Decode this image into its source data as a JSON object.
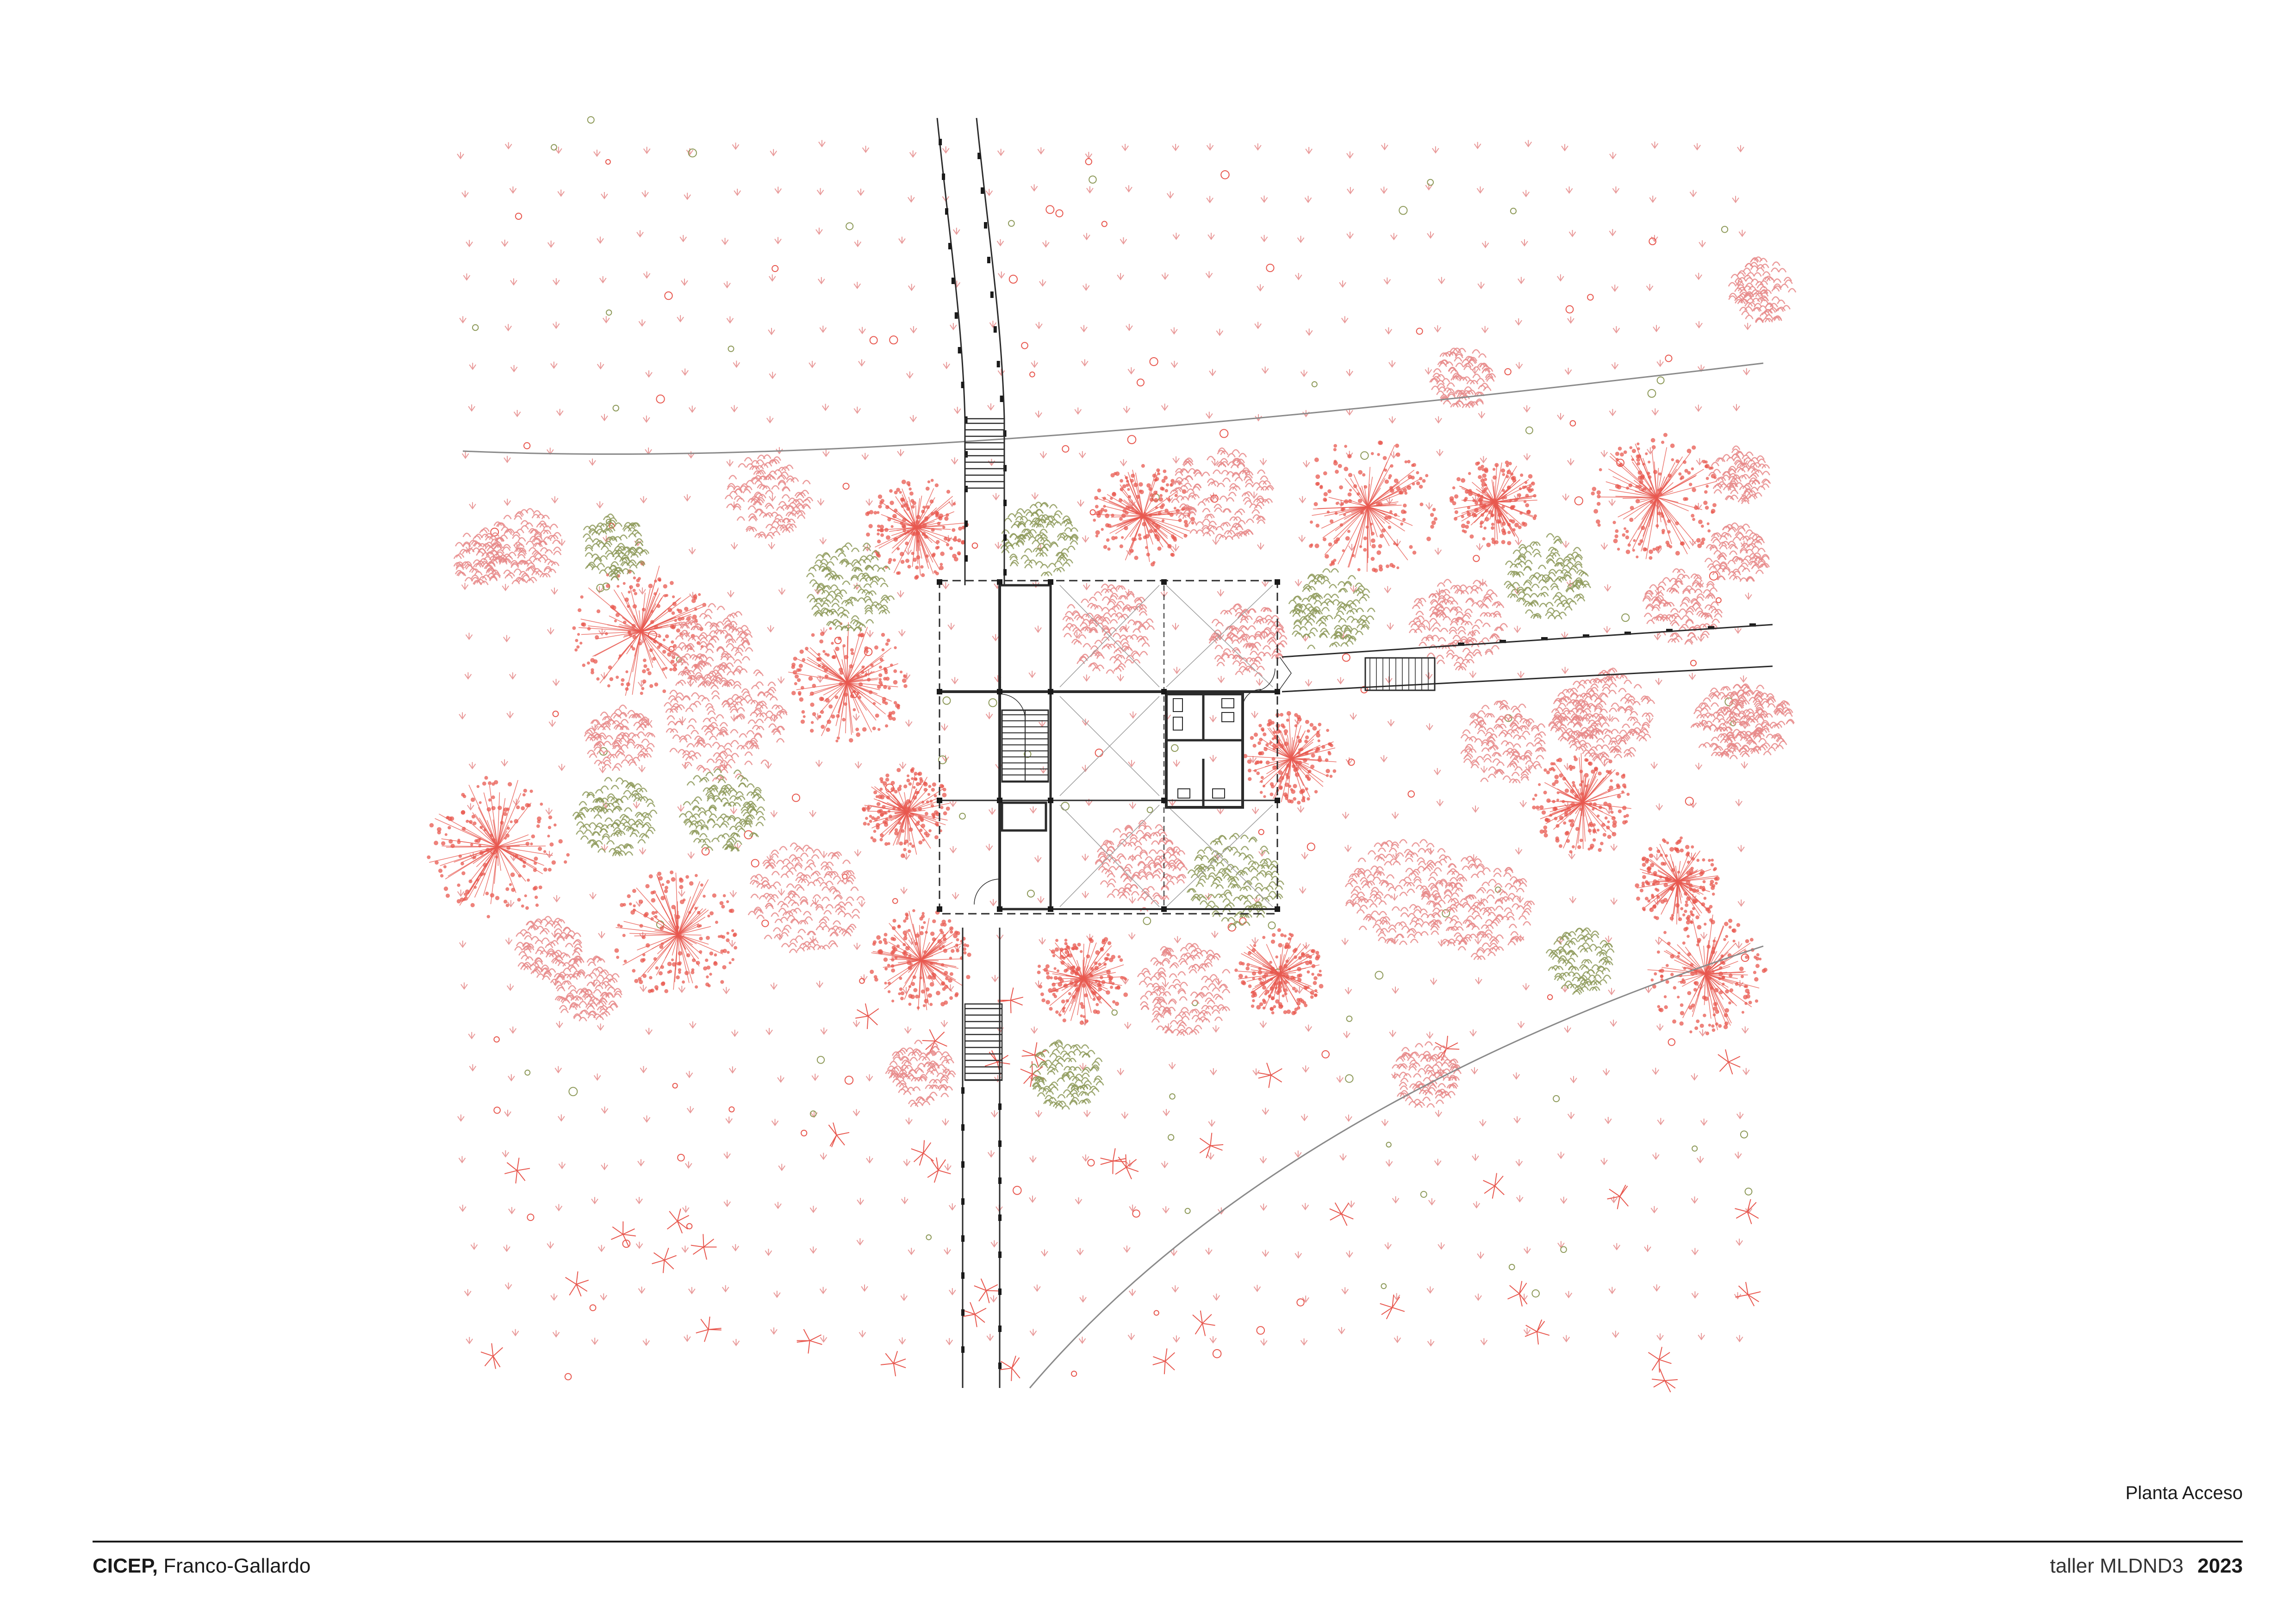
{
  "drawing": {
    "caption": "Planta Acceso",
    "palette": {
      "background": "#ffffff",
      "tree_red": "#e8584f",
      "tree_pink": "#e88a8a",
      "tree_olive": "#8e9a5a",
      "grass_pink": "#e99a9a",
      "structure": "#2b2b2b",
      "ground_line": "#8a8a8a"
    }
  },
  "footer": {
    "project": "CICEP,",
    "authors": "Franco-Gallardo",
    "studio": "taller MLDND3",
    "year": "2023"
  }
}
